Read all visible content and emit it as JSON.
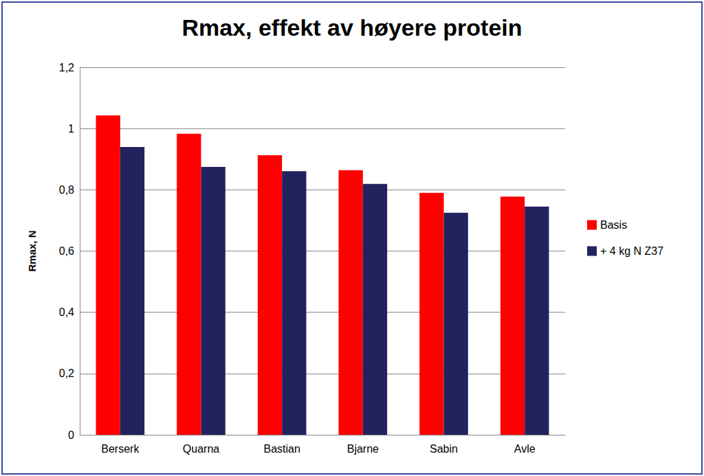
{
  "chart_data": {
    "type": "bar",
    "title": "Rmax, effekt av høyere protein",
    "y_label": "Rmax, N",
    "categories": [
      "Berserk",
      "Quarna",
      "Bastian",
      "Bjarne",
      "Sabin",
      "Avle"
    ],
    "series": [
      {
        "name": "Basis",
        "color": "#ff0000",
        "values": [
          1.043,
          0.983,
          0.913,
          0.864,
          0.79,
          0.778
        ]
      },
      {
        "name": "+ 4 kg N Z37",
        "color": "#22225f",
        "values": [
          0.94,
          0.875,
          0.861,
          0.819,
          0.725,
          0.745
        ]
      }
    ],
    "ylim": [
      0,
      1.2
    ],
    "yticks": [
      0,
      {
        "value": 0.2,
        "label": "0,2"
      },
      {
        "value": 0.4,
        "label": "0,4"
      },
      {
        "value": 0.6,
        "label": "0,6"
      },
      {
        "value": 0.8,
        "label": "0,8"
      },
      1,
      {
        "value": 1.2,
        "label": "1,2"
      }
    ],
    "grid": true,
    "legend": "right"
  }
}
